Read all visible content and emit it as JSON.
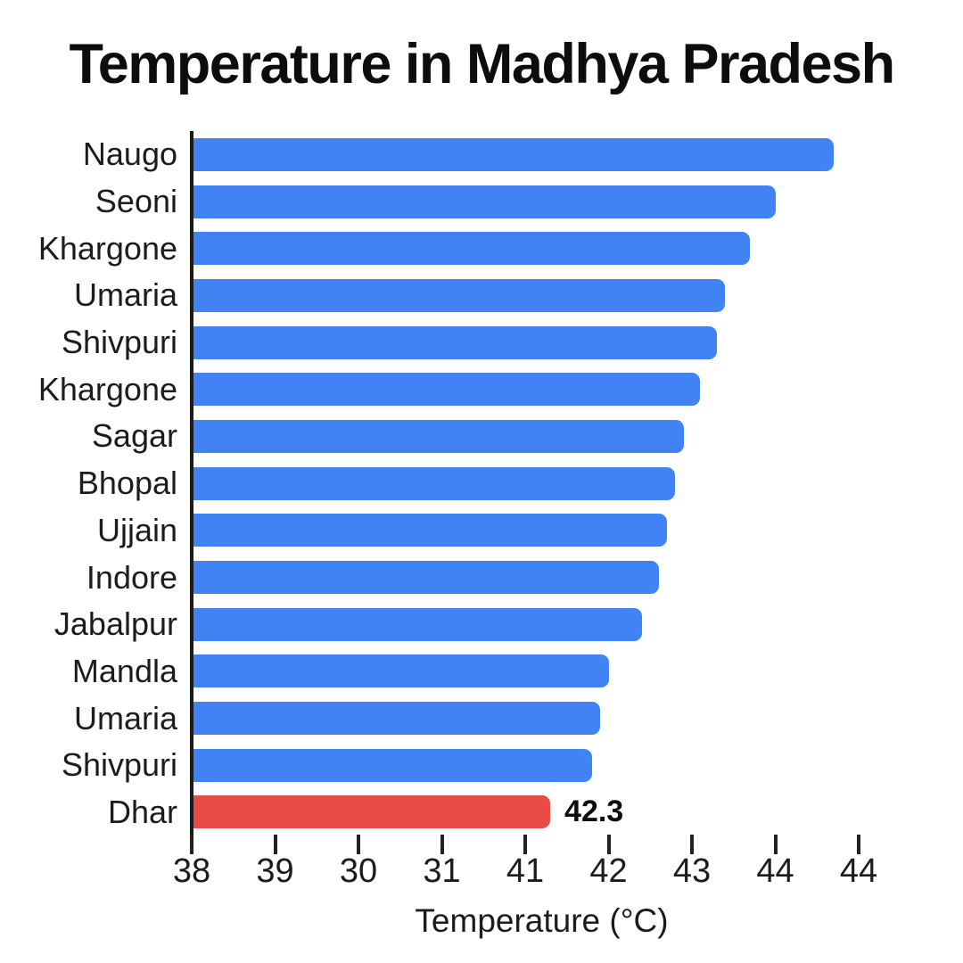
{
  "title": "Temperature in Madhya Pradesh",
  "chart_data": {
    "type": "bar",
    "orientation": "horizontal",
    "title": "Temperature in Madhya Pradesh",
    "xlabel": "Temperature (°C)",
    "ylabel": "",
    "categories": [
      "Naugo",
      "Seoni",
      "Khargone",
      "Umaria",
      "Shivpuri",
      "Khargone",
      "Sagar",
      "Bhopal",
      "Ujjain",
      "Indore",
      "Jabalpur",
      "Mandla",
      "Umaria",
      "Shivpuri",
      "Dhar"
    ],
    "values": [
      45.7,
      45.0,
      44.7,
      44.4,
      44.3,
      44.1,
      43.9,
      43.8,
      43.7,
      43.6,
      43.4,
      43.0,
      42.9,
      42.8,
      42.3
    ],
    "xlim": [
      38,
      46
    ],
    "x_tick_labels": [
      "38",
      "39",
      "30",
      "31",
      "41",
      "42",
      "43",
      "44",
      "44"
    ],
    "grid": false,
    "legend": false,
    "bar_color": "#4183f4",
    "highlight_color": "#e74c47",
    "highlight_index": 14,
    "annotation": {
      "text": "42.3",
      "category": "Dhar"
    }
  },
  "colors": {
    "background": "#ffffff",
    "axis": "#1a1a1a",
    "text": "#1c1c1c"
  }
}
